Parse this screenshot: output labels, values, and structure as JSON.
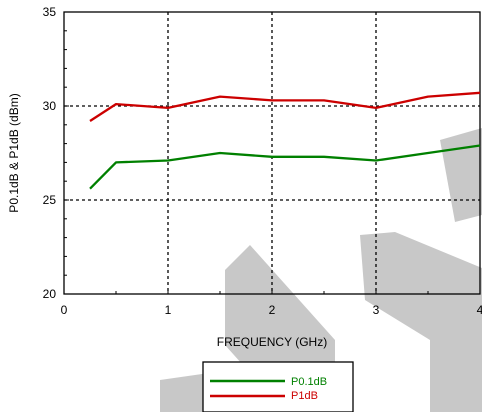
{
  "chart_data": {
    "type": "line",
    "title": "",
    "xlabel": "FREQUENCY (GHz)",
    "ylabel": "P0.1dB & P1dB (dBm)",
    "xlim": [
      0,
      4
    ],
    "ylim": [
      20,
      35
    ],
    "xticks": [
      "0",
      "1",
      "2",
      "3",
      "4"
    ],
    "yticks": [
      "20",
      "25",
      "30",
      "35"
    ],
    "grid": true,
    "legend_position": "bottom-center",
    "series": [
      {
        "name": "P0.1dB",
        "color": "#008000",
        "x": [
          0.25,
          0.5,
          1.0,
          1.5,
          2.0,
          2.5,
          3.0,
          3.5,
          4.0
        ],
        "y": [
          25.6,
          27.0,
          27.1,
          27.5,
          27.3,
          27.3,
          27.1,
          27.5,
          27.9
        ]
      },
      {
        "name": "P1dB",
        "color": "#cc0000",
        "x": [
          0.25,
          0.5,
          1.0,
          1.5,
          2.0,
          2.5,
          3.0,
          3.5,
          4.0
        ],
        "y": [
          29.2,
          30.1,
          29.9,
          30.5,
          30.3,
          30.3,
          29.9,
          30.5,
          30.7
        ]
      }
    ]
  },
  "watermark": {
    "color": "#c8c8c8",
    "lettering": "TBD"
  }
}
